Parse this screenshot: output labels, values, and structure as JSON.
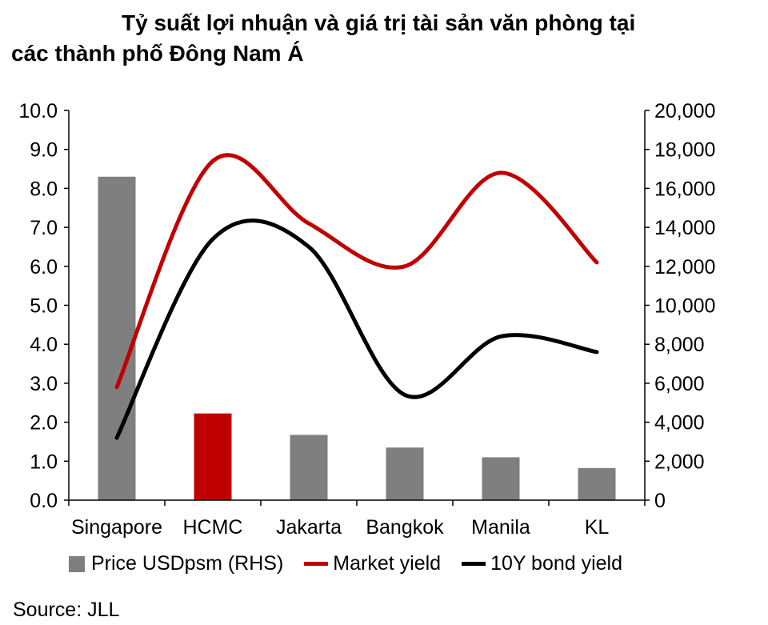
{
  "title_line1": "Tỷ suất lợi nhuận và giá trị tài sản văn phòng tại",
  "title_line2": "các thành phố Đông Nam Á",
  "source": "Source: JLL",
  "colors": {
    "bar_default": "#7f7f7f",
    "bar_highlight": "#c00000",
    "market_yield": "#c00000",
    "bond_yield": "#000000"
  },
  "chart_data": {
    "type": "bar",
    "title": "Tỷ suất lợi nhuận và giá trị tài sản văn phòng tại các thành phố Đông Nam Á",
    "categories": [
      "Singapore",
      "HCMC",
      "Jakarta",
      "Bangkok",
      "Manila",
      "KL"
    ],
    "left_axis": {
      "ylim": [
        0,
        10
      ],
      "ticks": [
        "0.0",
        "1.0",
        "2.0",
        "3.0",
        "4.0",
        "5.0",
        "6.0",
        "7.0",
        "8.0",
        "9.0",
        "10.0"
      ]
    },
    "right_axis": {
      "ylim": [
        0,
        20000
      ],
      "ticks": [
        "0",
        "2,000",
        "4,000",
        "6,000",
        "8,000",
        "10,000",
        "12,000",
        "14,000",
        "16,000",
        "18,000",
        "20,000"
      ]
    },
    "series": [
      {
        "name": "Price USDpsm (RHS)",
        "type": "bar",
        "axis": "right",
        "values": [
          16600,
          4450,
          3350,
          2700,
          2200,
          1650
        ]
      },
      {
        "name": "Market yield",
        "type": "line",
        "axis": "left",
        "values": [
          2.9,
          8.7,
          7.1,
          6.0,
          8.4,
          6.1
        ]
      },
      {
        "name": "10Y bond yield",
        "type": "line",
        "axis": "left",
        "values": [
          1.6,
          6.7,
          6.5,
          2.7,
          4.2,
          3.8
        ]
      }
    ],
    "highlight_category": "HCMC",
    "legend_position": "bottom",
    "grid": false
  }
}
